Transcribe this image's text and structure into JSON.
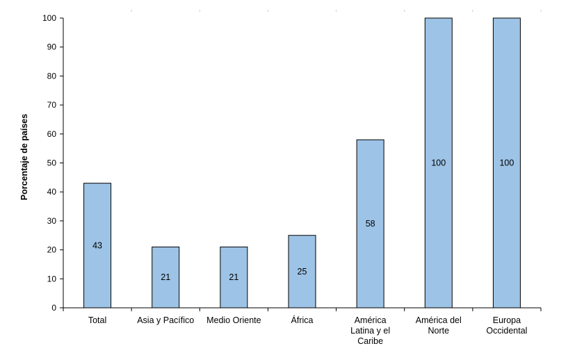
{
  "chart_data": {
    "type": "bar",
    "categories": [
      [
        "Total"
      ],
      [
        "Asia y Pacífico"
      ],
      [
        "Medio Oriente"
      ],
      [
        "África"
      ],
      [
        "América",
        "Latina y el",
        "Caribe"
      ],
      [
        "América del",
        "Norte"
      ],
      [
        "Europa",
        "Occidental"
      ]
    ],
    "values": [
      43,
      21,
      21,
      25,
      58,
      100,
      100
    ],
    "data_labels": [
      "43",
      "21",
      "21",
      "25",
      "58",
      "100",
      "100"
    ],
    "title": "",
    "xlabel": "",
    "ylabel": "Porcentaje de países",
    "ylim": [
      0,
      100
    ],
    "yticks": [
      "0",
      "10",
      "20",
      "30",
      "40",
      "50",
      "60",
      "70",
      "80",
      "90",
      "100"
    ],
    "grid": false,
    "legend": "none",
    "bar_color": "#9dc3e6",
    "bar_stroke": "#000000"
  }
}
